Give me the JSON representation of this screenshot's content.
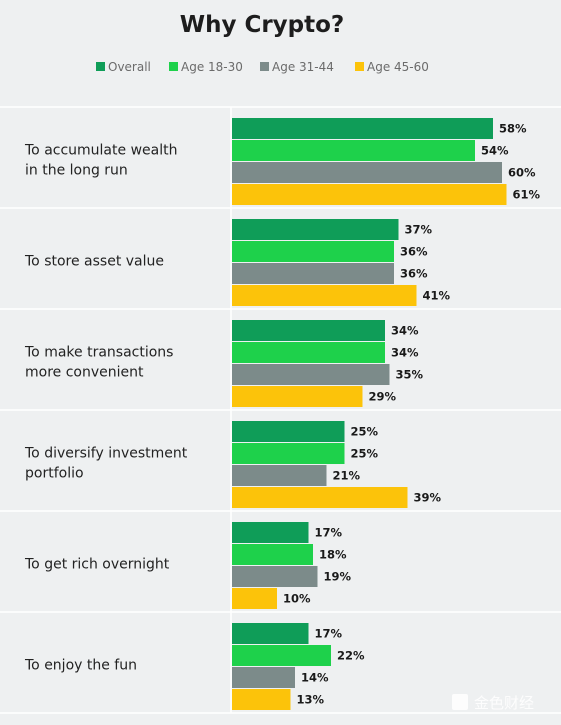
{
  "chart_data": {
    "type": "bar",
    "orientation": "horizontal",
    "title": "Why Crypto?",
    "categories": [
      [
        "To accumulate wealth",
        "in the long run"
      ],
      [
        "To store asset value"
      ],
      [
        "To make transactions",
        "more convenient"
      ],
      [
        "To diversify investment",
        "portfolio"
      ],
      [
        "To get rich overnight"
      ],
      [
        "To enjoy the fun"
      ]
    ],
    "series": [
      {
        "name": "Overall",
        "color": "#0f9d58",
        "values": [
          58,
          37,
          34,
          25,
          17,
          17
        ]
      },
      {
        "name": "Age 18-30",
        "color": "#1ed14b",
        "values": [
          54,
          36,
          34,
          25,
          18,
          22
        ]
      },
      {
        "name": "Age 31-44",
        "color": "#7c8b8a",
        "values": [
          60,
          36,
          35,
          21,
          19,
          14
        ]
      },
      {
        "name": "Age 45-60",
        "color": "#fcc30a",
        "values": [
          61,
          41,
          29,
          39,
          10,
          13
        ]
      }
    ],
    "value_suffix": "%",
    "legend_position": "top",
    "grid": false
  },
  "watermark": {
    "text": "金色财经",
    "icon": "gold-logo-icon"
  },
  "colors": {
    "background": "#eef0f1",
    "divider": "#ffffff"
  }
}
